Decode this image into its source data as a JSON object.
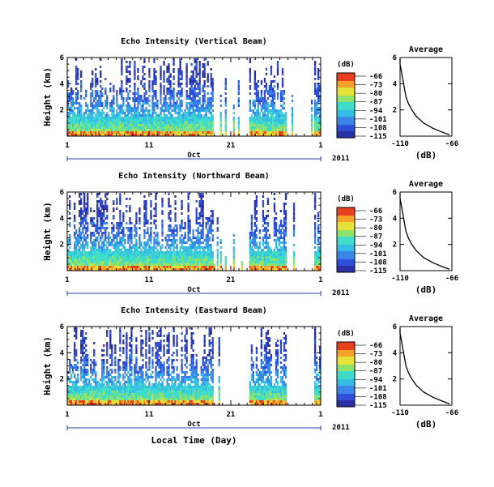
{
  "colors": {
    "colormap": [
      "#2b2fa6",
      "#2f4fd8",
      "#3a86e8",
      "#35bde6",
      "#3fdcc9",
      "#8fe36a",
      "#e6e23a",
      "#f5a12a",
      "#e6401f"
    ],
    "average_line": "#000000",
    "axis": "#000000",
    "background": "#ffffff"
  },
  "shared": {
    "ylabel": "Height (km)",
    "yticks": [
      "6",
      "4",
      "2"
    ],
    "xticks": [
      "1",
      "11",
      "21",
      "1"
    ],
    "month_label": "Oct",
    "year_label": "2011",
    "xlabel_bottom": "Local Time (Day)",
    "cbar_unit": "(dB)",
    "cbar_ticks": [
      "-66",
      "-73",
      "-80",
      "-87",
      "-94",
      "-101",
      "-108",
      "-115"
    ],
    "avg_title": "Average",
    "avg_xticks": [
      "-110",
      "-66"
    ],
    "avg_xlabel": "(dB)",
    "avg_yticks": [
      "6",
      "4",
      "2"
    ]
  },
  "panels": [
    {
      "title": "Echo Intensity (Vertical Beam)"
    },
    {
      "title": "Echo Intensity (Northward Beam)"
    },
    {
      "title": "Echo Intensity (Eastward Beam)"
    }
  ],
  "chart_data": {
    "type": "heatmap",
    "x_axis": "day",
    "xlim": [
      1,
      32
    ],
    "ylim": [
      0,
      6
    ],
    "clim": [
      -115,
      -66
    ],
    "data_gaps_days": [
      [
        18.8,
        23.3
      ],
      [
        27.8,
        31.2
      ]
    ],
    "average_profile": {
      "type": "line",
      "xlim": [
        -110,
        -66
      ],
      "ylim": [
        0,
        6
      ],
      "height_km": [
        0.1,
        0.3,
        0.6,
        1.0,
        1.5,
        2.0,
        2.5,
        3.0,
        3.5,
        4.0,
        4.5,
        5.0,
        5.5,
        5.9
      ],
      "echo_db": [
        -68,
        -74,
        -82,
        -90,
        -96,
        -100,
        -103,
        -105,
        -106,
        -107,
        -108,
        -109,
        -110,
        -110
      ]
    }
  }
}
